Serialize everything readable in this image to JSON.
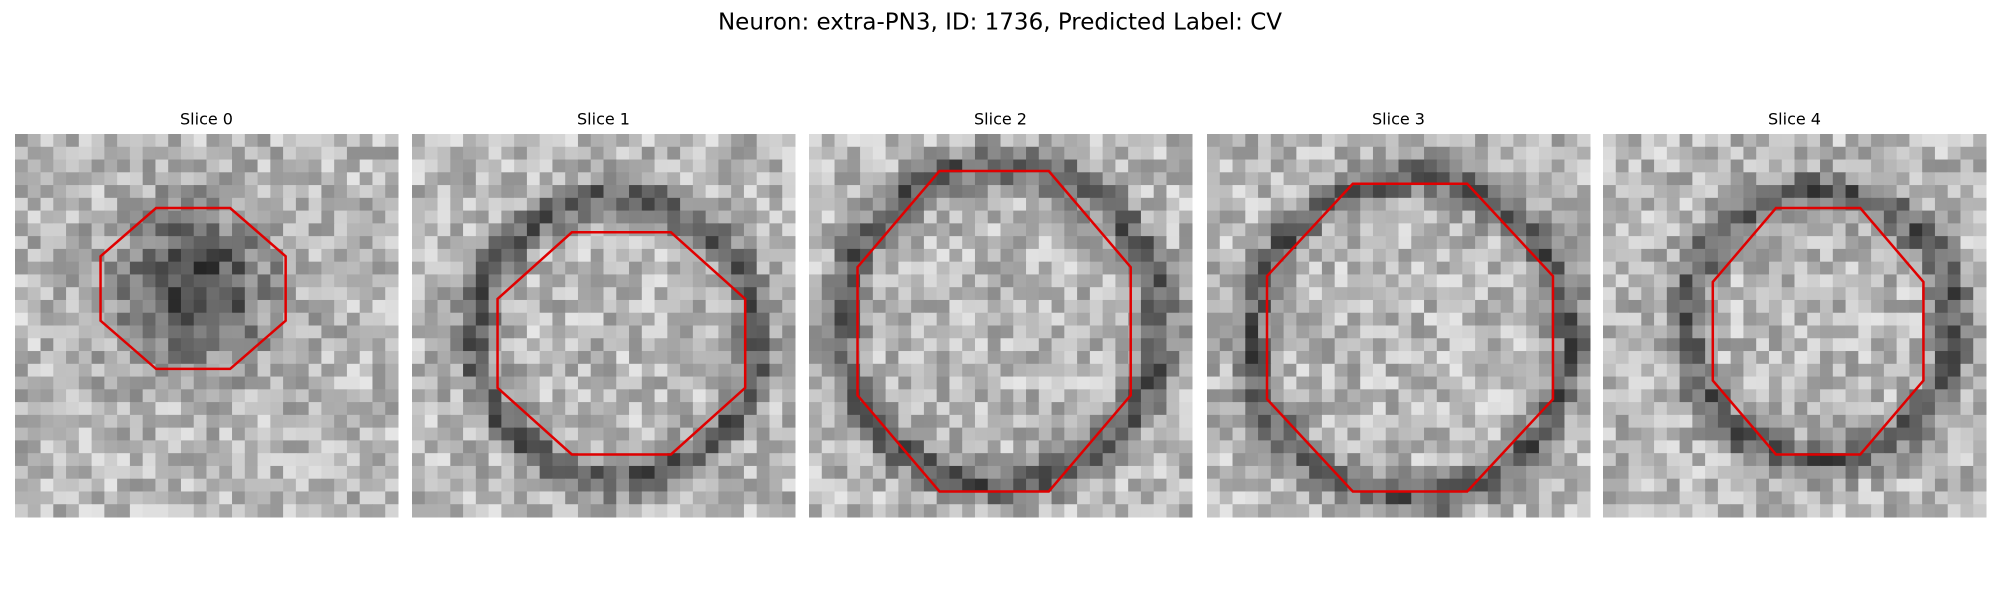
{
  "title": "Neuron: extra-PN3, ID: 1736, Predicted Label: CV",
  "panels": [
    {
      "title": "Slice 0"
    },
    {
      "title": "Slice 1"
    },
    {
      "title": "Slice 2"
    },
    {
      "title": "Slice 3"
    },
    {
      "title": "Slice 4"
    }
  ]
}
